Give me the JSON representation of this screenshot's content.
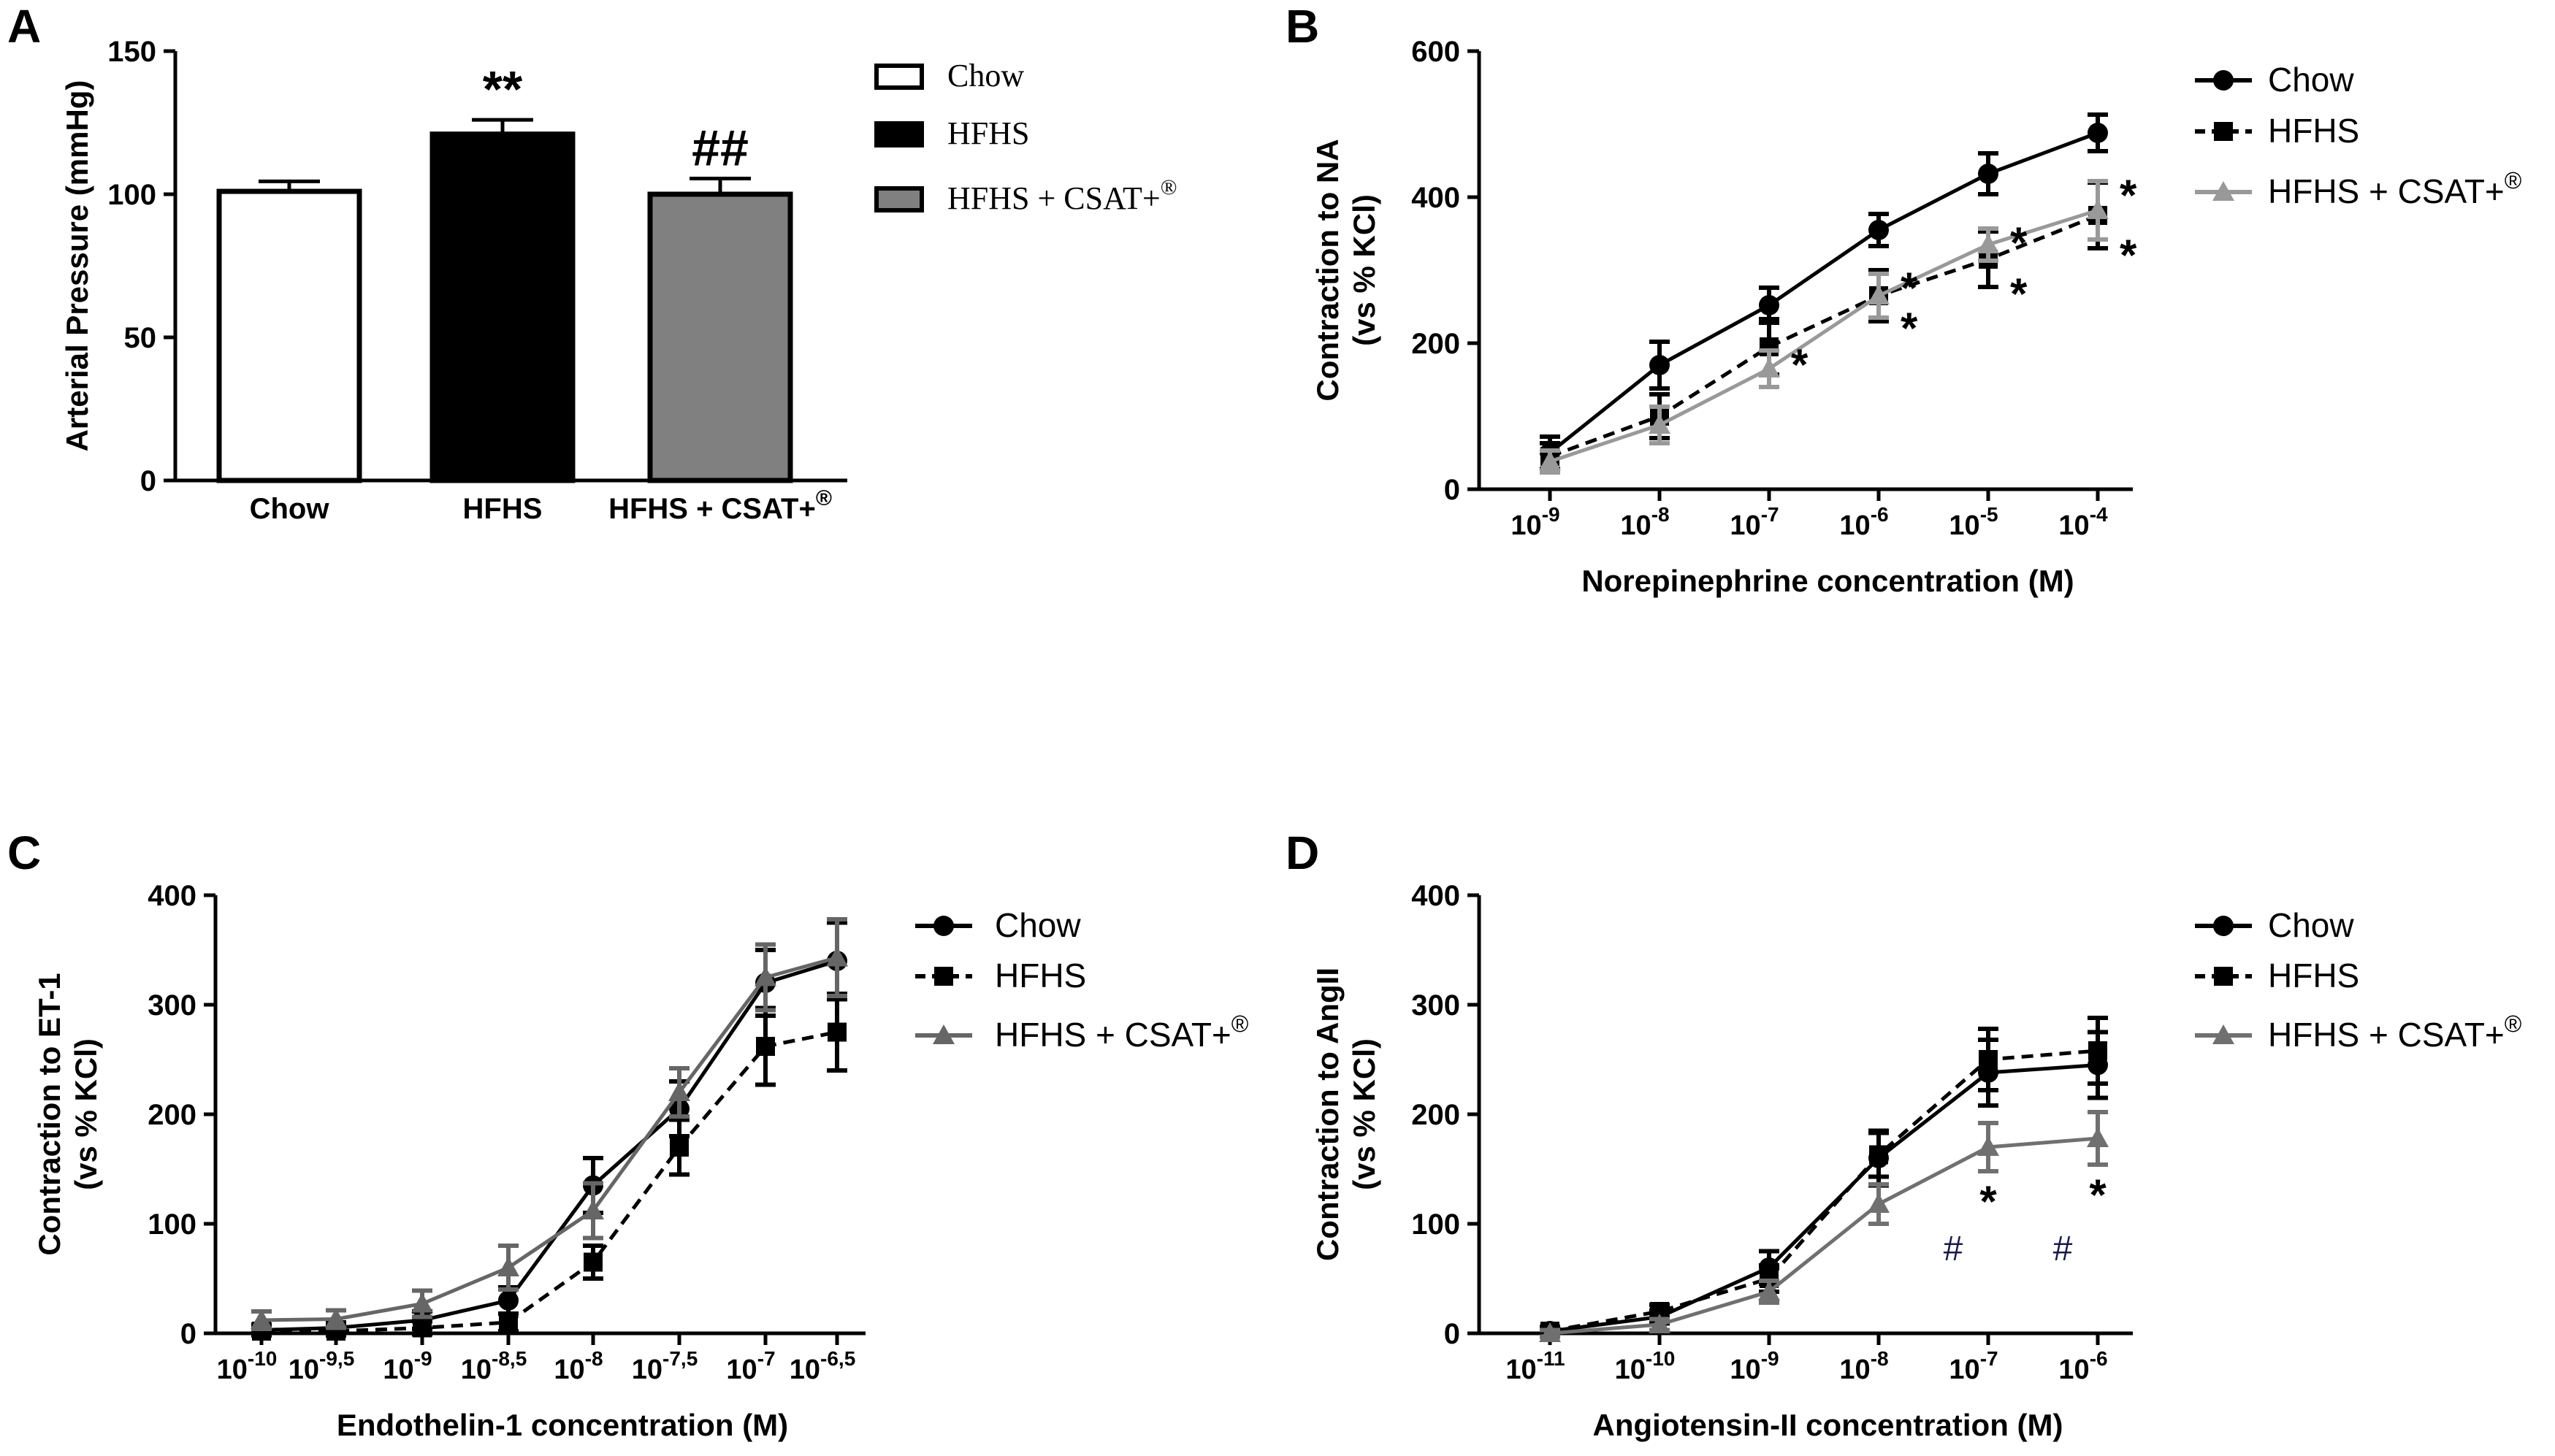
{
  "chart_data": [
    {
      "panel_label": "A",
      "type": "bar",
      "ylabel": "Arterial Pressure (mmHg)",
      "ylim": [
        0,
        150
      ],
      "yticks": [
        "0",
        "50",
        "100",
        "150"
      ],
      "categories": [
        "Chow",
        "HFHS",
        "HFHS + CSAT+"
      ],
      "category_superscripts": [
        "",
        "",
        "®"
      ],
      "values": [
        101,
        121,
        100
      ],
      "errors": [
        3.5,
        5,
        5.5
      ],
      "fills": [
        "#ffffff",
        "#000000",
        "#808080"
      ],
      "annotations": [
        "",
        "**",
        "##"
      ],
      "legend": [
        {
          "label": "Chow",
          "superscript": "",
          "fill": "#ffffff"
        },
        {
          "label": "HFHS",
          "superscript": "",
          "fill": "#000000"
        },
        {
          "label": "HFHS + CSAT+",
          "superscript": "®",
          "fill": "#808080"
        }
      ],
      "legend_position": "right",
      "grid": false
    },
    {
      "panel_label": "B",
      "type": "line",
      "xlabel": "Norepinephrine concentration (M)",
      "ylabel_lines": [
        "Contraction to NA",
        "(vs % KCl)"
      ],
      "ylim": [
        0,
        600
      ],
      "yticks": [
        "0",
        "200",
        "400",
        "600"
      ],
      "x_exponents": [
        "-9",
        "-8",
        "-7",
        "-6",
        "-5",
        "-4"
      ],
      "series": [
        {
          "name": "Chow",
          "marker": "circle",
          "color": "#000000",
          "dashed": false,
          "values": [
            50,
            170,
            252,
            355,
            432,
            488
          ],
          "errors": [
            22,
            32,
            24,
            22,
            28,
            25
          ],
          "stars": [
            "",
            "",
            "",
            "",
            "",
            ""
          ]
        },
        {
          "name": "HFHS",
          "marker": "square",
          "color": "#000000",
          "dashed": true,
          "values": [
            45,
            100,
            195,
            265,
            315,
            375
          ],
          "errors": [
            18,
            30,
            38,
            35,
            38,
            45
          ],
          "stars": [
            "",
            "",
            "",
            "*",
            "*",
            "*"
          ]
        },
        {
          "name": "HFHS + CSAT+",
          "superscript": "®",
          "marker": "triangle",
          "color": "#999999",
          "dashed": false,
          "values": [
            38,
            88,
            165,
            265,
            335,
            382
          ],
          "errors": [
            15,
            25,
            25,
            30,
            22,
            40
          ],
          "stars": [
            "",
            "",
            "*",
            "*",
            "*",
            "*"
          ]
        }
      ],
      "legend_position": "right",
      "grid": false
    },
    {
      "panel_label": "C",
      "type": "line",
      "xlabel": "Endothelin-1 concentration (M)",
      "ylabel_lines": [
        "Contraction to ET-1",
        "(vs % KCl)"
      ],
      "ylim": [
        0,
        400
      ],
      "yticks": [
        "0",
        "100",
        "200",
        "300",
        "400"
      ],
      "x_exponents": [
        "-10",
        "-9,5",
        "-9",
        "-8,5",
        "-8",
        "-7,5",
        "-7",
        "-6,5"
      ],
      "series": [
        {
          "name": "Chow",
          "marker": "circle",
          "color": "#000000",
          "dashed": false,
          "values": [
            3,
            5,
            12,
            30,
            135,
            205,
            320,
            340
          ],
          "errors": [
            5,
            5,
            8,
            12,
            25,
            25,
            30,
            35
          ],
          "stars": [
            "",
            "",
            "",
            "",
            "",
            "",
            "",
            ""
          ]
        },
        {
          "name": "HFHS",
          "marker": "square",
          "color": "#000000",
          "dashed": true,
          "values": [
            2,
            2,
            5,
            10,
            65,
            170,
            262,
            275
          ],
          "errors": [
            4,
            4,
            6,
            8,
            15,
            25,
            35,
            35
          ],
          "stars": [
            "",
            "",
            "",
            "",
            "",
            "",
            "",
            ""
          ]
        },
        {
          "name": "HFHS + CSAT+",
          "superscript": "®",
          "marker": "triangle",
          "color": "#666666",
          "dashed": false,
          "values": [
            12,
            13,
            27,
            60,
            112,
            220,
            325,
            343
          ],
          "errors": [
            8,
            8,
            12,
            20,
            25,
            22,
            30,
            35
          ],
          "stars": [
            "",
            "",
            "",
            "",
            "",
            "",
            "",
            ""
          ]
        }
      ],
      "legend_position": "right",
      "grid": false
    },
    {
      "panel_label": "D",
      "type": "line",
      "xlabel": "Angiotensin-II concentration (M)",
      "ylabel_lines": [
        "Contraction to AngII",
        "(vs % KCl)"
      ],
      "ylim": [
        0,
        400
      ],
      "yticks": [
        "0",
        "100",
        "200",
        "300",
        "400"
      ],
      "x_exponents": [
        "-11",
        "-10",
        "-9",
        "-8",
        "-7",
        "-6"
      ],
      "series": [
        {
          "name": "Chow",
          "marker": "circle",
          "color": "#000000",
          "dashed": false,
          "values": [
            2,
            15,
            60,
            160,
            238,
            245
          ],
          "errors": [
            4,
            6,
            15,
            25,
            30,
            30
          ],
          "stars": [
            "",
            "",
            "",
            "",
            "",
            ""
          ]
        },
        {
          "name": "HFHS",
          "marker": "square",
          "color": "#000000",
          "dashed": true,
          "values": [
            2,
            20,
            50,
            163,
            250,
            258
          ],
          "errors": [
            4,
            6,
            12,
            20,
            28,
            30
          ],
          "stars": [
            "",
            "",
            "",
            "",
            "",
            ""
          ]
        },
        {
          "name": "HFHS + CSAT+",
          "superscript": "®",
          "marker": "triangle",
          "color": "#707070",
          "dashed": false,
          "values": [
            0,
            8,
            38,
            118,
            170,
            178
          ],
          "errors": [
            3,
            5,
            10,
            18,
            22,
            24
          ],
          "stars": [
            "",
            "",
            "",
            "",
            "*",
            "*"
          ]
        }
      ],
      "hash_marks": [
        "",
        "",
        "",
        "",
        "#",
        "#"
      ],
      "legend_position": "right",
      "grid": false
    }
  ]
}
